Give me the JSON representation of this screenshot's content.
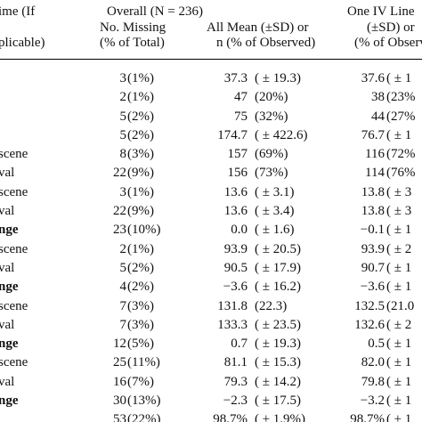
{
  "header": {
    "col_label_line1": "ime (If",
    "col_label_line2": "plicable)",
    "overall_line1": "Overall (N = 236)",
    "overall_line2": "No. Missing",
    "overall_line3": "(% of Total)",
    "mean_line2": "All Mean (±SD) or",
    "mean_line3": "n (% of Observed)",
    "oneiv_line1": "One IV Line",
    "oneiv_line2": "(±SD) or",
    "oneiv_line3": "(% of Observ"
  },
  "rows": [
    {
      "label": "",
      "bold": false,
      "count": "3",
      "pct": "(1%)",
      "mean": "37.3",
      "sd": "( ± 19.3)",
      "iv": "37.6",
      "ivsd": "( ± 1"
    },
    {
      "label": "",
      "bold": false,
      "count": "2",
      "pct": "(1%)",
      "mean": "47",
      "sd": "(20%)",
      "iv": "38",
      "ivsd": "(23%"
    },
    {
      "label": "",
      "bold": false,
      "count": "5",
      "pct": "(2%)",
      "mean": "75",
      "sd": "(32%)",
      "iv": "44",
      "ivsd": "(27%"
    },
    {
      "label": "",
      "bold": false,
      "count": "5",
      "pct": "(2%)",
      "mean": "174.7",
      "sd": "( ± 422.6)",
      "iv": "76.7",
      "ivsd": "( ± 1"
    },
    {
      "label": "scene",
      "bold": false,
      "count": "8",
      "pct": "(3%)",
      "mean": "157",
      "sd": "(69%)",
      "iv": "116",
      "ivsd": "(72%"
    },
    {
      "label": "val",
      "bold": false,
      "count": "22",
      "pct": "(9%)",
      "mean": "156",
      "sd": "(73%)",
      "iv": "114",
      "ivsd": "(76%"
    },
    {
      "label": "scene",
      "bold": false,
      "count": "3",
      "pct": "(1%)",
      "mean": "13.6",
      "sd": "( ± 3.1)",
      "iv": "13.8",
      "ivsd": "( ± 3"
    },
    {
      "label": "val",
      "bold": false,
      "count": "22",
      "pct": "(9%)",
      "mean": "13.6",
      "sd": "( ± 3.4)",
      "iv": "13.8",
      "ivsd": "( ± 3"
    },
    {
      "label": "nge",
      "bold": true,
      "count": "23",
      "pct": "(10%)",
      "mean": "0.0",
      "sd": "( ± 1.6)",
      "iv": "−0.1",
      "ivsd": "( ± 1"
    },
    {
      "label": "scene",
      "bold": false,
      "count": "2",
      "pct": "(1%)",
      "mean": "93.9",
      "sd": "( ± 20.5)",
      "iv": "93.9",
      "ivsd": "( ± 2"
    },
    {
      "label": "val",
      "bold": false,
      "count": "5",
      "pct": "(2%)",
      "mean": "90.5",
      "sd": "( ± 17.9)",
      "iv": "90.7",
      "ivsd": "( ± 1"
    },
    {
      "label": "nge",
      "bold": true,
      "count": "4",
      "pct": "(2%)",
      "mean": "−3.6",
      "sd": "( ± 16.2)",
      "iv": "−3.6",
      "ivsd": "( ± 1"
    },
    {
      "label": "scene",
      "bold": false,
      "count": "7",
      "pct": "(3%)",
      "mean": "131.8",
      "sd": "(22.3)",
      "iv": "132.5",
      "ivsd": "(21.0"
    },
    {
      "label": "val",
      "bold": false,
      "count": "7",
      "pct": "(3%)",
      "mean": "133.3",
      "sd": "( ± 23.5)",
      "iv": "132.6",
      "ivsd": "( ± 2"
    },
    {
      "label": "nge",
      "bold": true,
      "count": "12",
      "pct": "(5%)",
      "mean": "0.7",
      "sd": "( ± 19.3)",
      "iv": "0.5",
      "ivsd": "( ± 1"
    },
    {
      "label": "scene",
      "bold": false,
      "count": "25",
      "pct": "(11%)",
      "mean": "81.1",
      "sd": "( ± 15.3)",
      "iv": "82.0",
      "ivsd": "( ± 1"
    },
    {
      "label": "val",
      "bold": false,
      "count": "16",
      "pct": "(7%)",
      "mean": "79.3",
      "sd": "( ± 14.2)",
      "iv": "79.8",
      "ivsd": "( ± 1"
    },
    {
      "label": "nge",
      "bold": true,
      "count": "30",
      "pct": "(13%)",
      "mean": "−2.3",
      "sd": "( ± 17.5)",
      "iv": "−3.2",
      "ivsd": "( ± 1"
    },
    {
      "label": "",
      "bold": false,
      "count": "53",
      "pct": "(22%)",
      "mean": "98.7%",
      "sd": "( ± 1.9%)",
      "iv": "98.7%",
      "ivsd": "( ± 1"
    }
  ]
}
